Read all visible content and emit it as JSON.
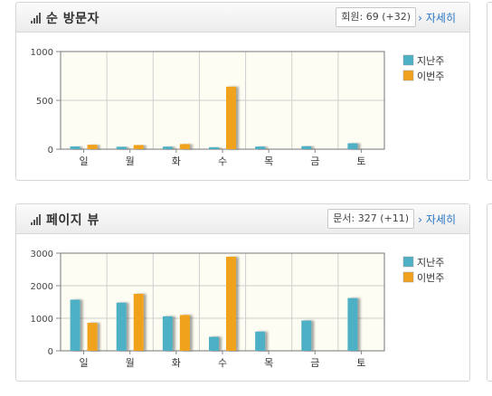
{
  "panels": [
    {
      "title": "순 방문자",
      "badge": "회원: 69 (+32)",
      "more_label": "자세히",
      "chart_data": {
        "type": "bar",
        "categories": [
          "일",
          "월",
          "화",
          "수",
          "목",
          "금",
          "토"
        ],
        "series": [
          {
            "name": "지난주",
            "color": "#4eb0c4",
            "values": [
              28,
              25,
              26,
              20,
              27,
              30,
              60
            ]
          },
          {
            "name": "이번주",
            "color": "#f0a21e",
            "values": [
              45,
              42,
              52,
              640,
              0,
              0,
              0
            ]
          }
        ],
        "yticks": [
          0,
          500,
          1000
        ],
        "ylim": [
          0,
          1000
        ],
        "grid": true,
        "legend": "right"
      }
    },
    {
      "title": "페이지 뷰",
      "badge": "문서: 327 (+11)",
      "more_label": "자세히",
      "chart_data": {
        "type": "bar",
        "categories": [
          "일",
          "월",
          "화",
          "수",
          "목",
          "금",
          "토"
        ],
        "series": [
          {
            "name": "지난주",
            "color": "#4eb0c4",
            "values": [
              1570,
              1480,
              1060,
              430,
              590,
              930,
              1620
            ]
          },
          {
            "name": "이번주",
            "color": "#f0a21e",
            "values": [
              860,
              1750,
              1100,
              2890,
              0,
              0,
              0
            ]
          }
        ],
        "yticks": [
          0,
          1000,
          2000,
          3000
        ],
        "ylim": [
          0,
          3000
        ],
        "grid": true,
        "legend": "right"
      }
    }
  ]
}
